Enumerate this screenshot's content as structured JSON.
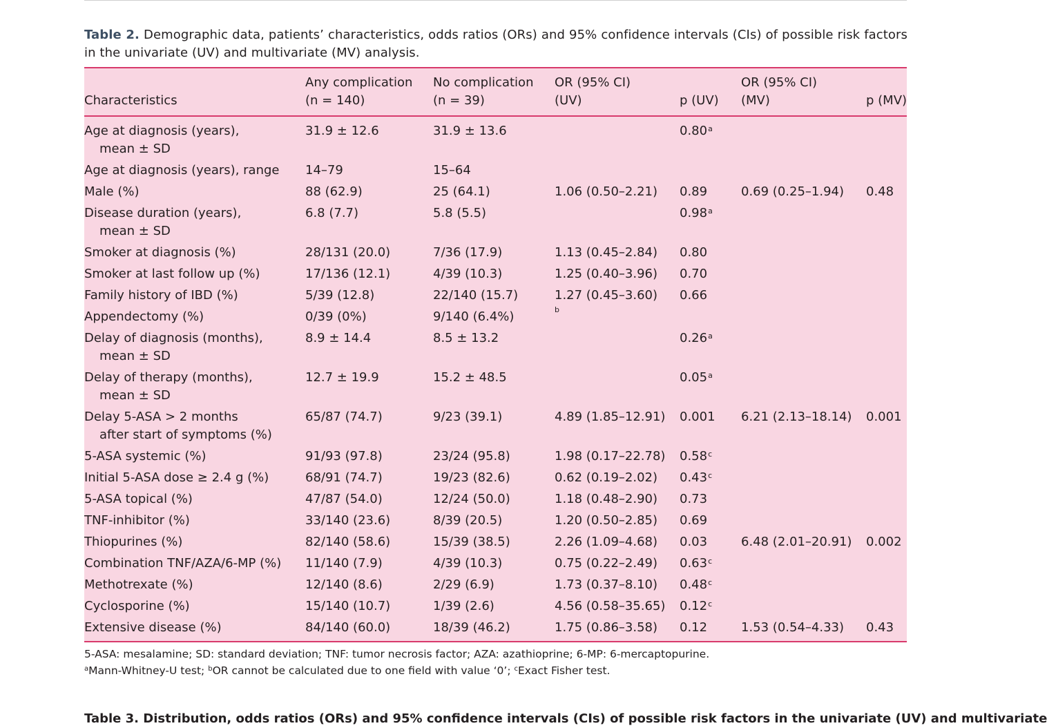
{
  "caption": {
    "label": "Table 2.",
    "text": "Demographic data, patients’ characteristics, odds ratios (ORs) and 95% confidence intervals (CIs) of possible risk factors in the univariate (UV) and multivariate (MV) analysis."
  },
  "table": {
    "headers": {
      "characteristics": "Characteristics",
      "any_l1": "Any complication",
      "any_l2": "(n = 140)",
      "no_l1": "No complication",
      "no_l2": "(n = 39)",
      "or_uv_l1": "OR (95% CI)",
      "or_uv_l2": "(UV)",
      "p_uv": "p (UV)",
      "or_mv_l1": "OR (95% CI)",
      "or_mv_l2": "(MV)",
      "p_mv": "p (MV)"
    },
    "rows": [
      {
        "label1": "Age at diagnosis (years),",
        "label2": "mean ± SD",
        "any": "31.9 ± 12.6",
        "no": "31.9 ± 13.6",
        "or_uv": "",
        "p_uv": "0.80",
        "p_sup": "a",
        "or_mv": "",
        "p_mv": ""
      },
      {
        "label1": "Age at diagnosis (years), range",
        "label2": "",
        "any": "14–79",
        "no": "15–64",
        "or_uv": "",
        "p_uv": "",
        "p_sup": "",
        "or_mv": "",
        "p_mv": ""
      },
      {
        "label1": "Male (%)",
        "label2": "",
        "any": "88 (62.9)",
        "no": "25 (64.1)",
        "or_uv": "1.06 (0.50–2.21)",
        "p_uv": "0.89",
        "p_sup": "",
        "or_mv": "0.69 (0.25–1.94)",
        "p_mv": "0.48"
      },
      {
        "label1": "Disease duration (years),",
        "label2": "mean ± SD",
        "any": "6.8 (7.7)",
        "no": "5.8 (5.5)",
        "or_uv": "",
        "p_uv": "0.98",
        "p_sup": "a",
        "or_mv": "",
        "p_mv": ""
      },
      {
        "label1": "Smoker at diagnosis (%)",
        "label2": "",
        "any": "28/131 (20.0)",
        "no": "7/36 (17.9)",
        "or_uv": "1.13 (0.45–2.84)",
        "p_uv": "0.80",
        "p_sup": "",
        "or_mv": "",
        "p_mv": ""
      },
      {
        "label1": "Smoker at last follow up (%)",
        "label2": "",
        "any": "17/136 (12.1)",
        "no": "4/39 (10.3)",
        "or_uv": "1.25 (0.40–3.96)",
        "p_uv": "0.70",
        "p_sup": "",
        "or_mv": "",
        "p_mv": ""
      },
      {
        "label1": "Family history of IBD (%)",
        "label2": "",
        "any": "5/39 (12.8)",
        "no": "22/140 (15.7)",
        "or_uv": "1.27 (0.45–3.60)",
        "p_uv": "0.66",
        "p_sup": "",
        "or_mv": "",
        "p_mv": ""
      },
      {
        "label1": "Appendectomy (%)",
        "label2": "",
        "any": "0/39 (0%)",
        "no": "9/140 (6.4%)",
        "or_uv": "b",
        "p_uv": "",
        "p_sup": "",
        "or_mv": "",
        "p_mv": ""
      },
      {
        "label1": "Delay of diagnosis (months),",
        "label2": "mean ± SD",
        "any": "8.9 ± 14.4",
        "no": "8.5 ± 13.2",
        "or_uv": "",
        "p_uv": "0.26",
        "p_sup": "a",
        "or_mv": "",
        "p_mv": ""
      },
      {
        "label1": "Delay of therapy (months),",
        "label2": "mean ± SD",
        "any": "12.7 ± 19.9",
        "no": "15.2 ± 48.5",
        "or_uv": "",
        "p_uv": "0.05",
        "p_sup": "a",
        "or_mv": "",
        "p_mv": ""
      },
      {
        "label1": "Delay 5-ASA > 2 months",
        "label2": "after start of symptoms (%)",
        "any": "65/87 (74.7)",
        "no": "9/23 (39.1)",
        "or_uv": "4.89 (1.85–12.91)",
        "p_uv": "0.001",
        "p_sup": "",
        "or_mv": "6.21 (2.13–18.14)",
        "p_mv": "0.001"
      },
      {
        "label1": "5-ASA systemic (%)",
        "label2": "",
        "any": "91/93 (97.8)",
        "no": "23/24 (95.8)",
        "or_uv": "1.98 (0.17–22.78)",
        "p_uv": "0.58",
        "p_sup": "c",
        "or_mv": "",
        "p_mv": ""
      },
      {
        "label1": "Initial 5-ASA dose ≥ 2.4 g (%)",
        "label2": "",
        "any": "68/91 (74.7)",
        "no": "19/23 (82.6)",
        "or_uv": "0.62 (0.19–2.02)",
        "p_uv": "0.43",
        "p_sup": "c",
        "or_mv": "",
        "p_mv": ""
      },
      {
        "label1": "5-ASA topical (%)",
        "label2": "",
        "any": "47/87 (54.0)",
        "no": "12/24 (50.0)",
        "or_uv": "1.18 (0.48–2.90)",
        "p_uv": "0.73",
        "p_sup": "",
        "or_mv": "",
        "p_mv": ""
      },
      {
        "label1": "TNF-inhibitor (%)",
        "label2": "",
        "any": "33/140 (23.6)",
        "no": "8/39 (20.5)",
        "or_uv": "1.20 (0.50–2.85)",
        "p_uv": "0.69",
        "p_sup": "",
        "or_mv": "",
        "p_mv": ""
      },
      {
        "label1": "Thiopurines (%)",
        "label2": "",
        "any": "82/140 (58.6)",
        "no": "15/39 (38.5)",
        "or_uv": "2.26 (1.09–4.68)",
        "p_uv": "0.03",
        "p_sup": "",
        "or_mv": "6.48 (2.01–20.91)",
        "p_mv": "0.002"
      },
      {
        "label1": "Combination TNF/AZA/6-MP (%)",
        "label2": "",
        "any": "11/140 (7.9)",
        "no": "4/39 (10.3)",
        "or_uv": "0.75 (0.22–2.49)",
        "p_uv": "0.63",
        "p_sup": "c",
        "or_mv": "",
        "p_mv": ""
      },
      {
        "label1": "Methotrexate (%)",
        "label2": "",
        "any": "12/140 (8.6)",
        "no": "2/29 (6.9)",
        "or_uv": "1.73 (0.37–8.10)",
        "p_uv": "0.48",
        "p_sup": "c",
        "or_mv": "",
        "p_mv": ""
      },
      {
        "label1": "Cyclosporine (%)",
        "label2": "",
        "any": "15/140 (10.7)",
        "no": "1/39 (2.6)",
        "or_uv": "4.56 (0.58–35.65)",
        "p_uv": "0.12",
        "p_sup": "c",
        "or_mv": "",
        "p_mv": ""
      },
      {
        "label1": "Extensive disease (%)",
        "label2": "",
        "any": "84/140 (60.0)",
        "no": "18/39 (46.2)",
        "or_uv": "1.75 (0.86–3.58)",
        "p_uv": "0.12",
        "p_sup": "",
        "or_mv": "1.53 (0.54–4.33)",
        "p_mv": "0.43"
      }
    ]
  },
  "footnotes": {
    "abbreviations": "5-ASA: mesalamine; SD: standard deviation; TNF: tumor necrosis factor; AZA: azathioprine; 6-MP: 6-mercaptopurine.",
    "a_mark": "a",
    "a_text": "Mann-Whitney-U test; ",
    "b_mark": "b",
    "b_text": "OR cannot be calculated due to one field with value ‘0’; ",
    "c_mark": "c",
    "c_text": "Exact Fisher test."
  },
  "next_table": {
    "text": "Table 3. Distribution, odds ratios (ORs) and 95% confidence intervals (CIs) of possible risk factors in the univariate (UV) and multivariate"
  }
}
